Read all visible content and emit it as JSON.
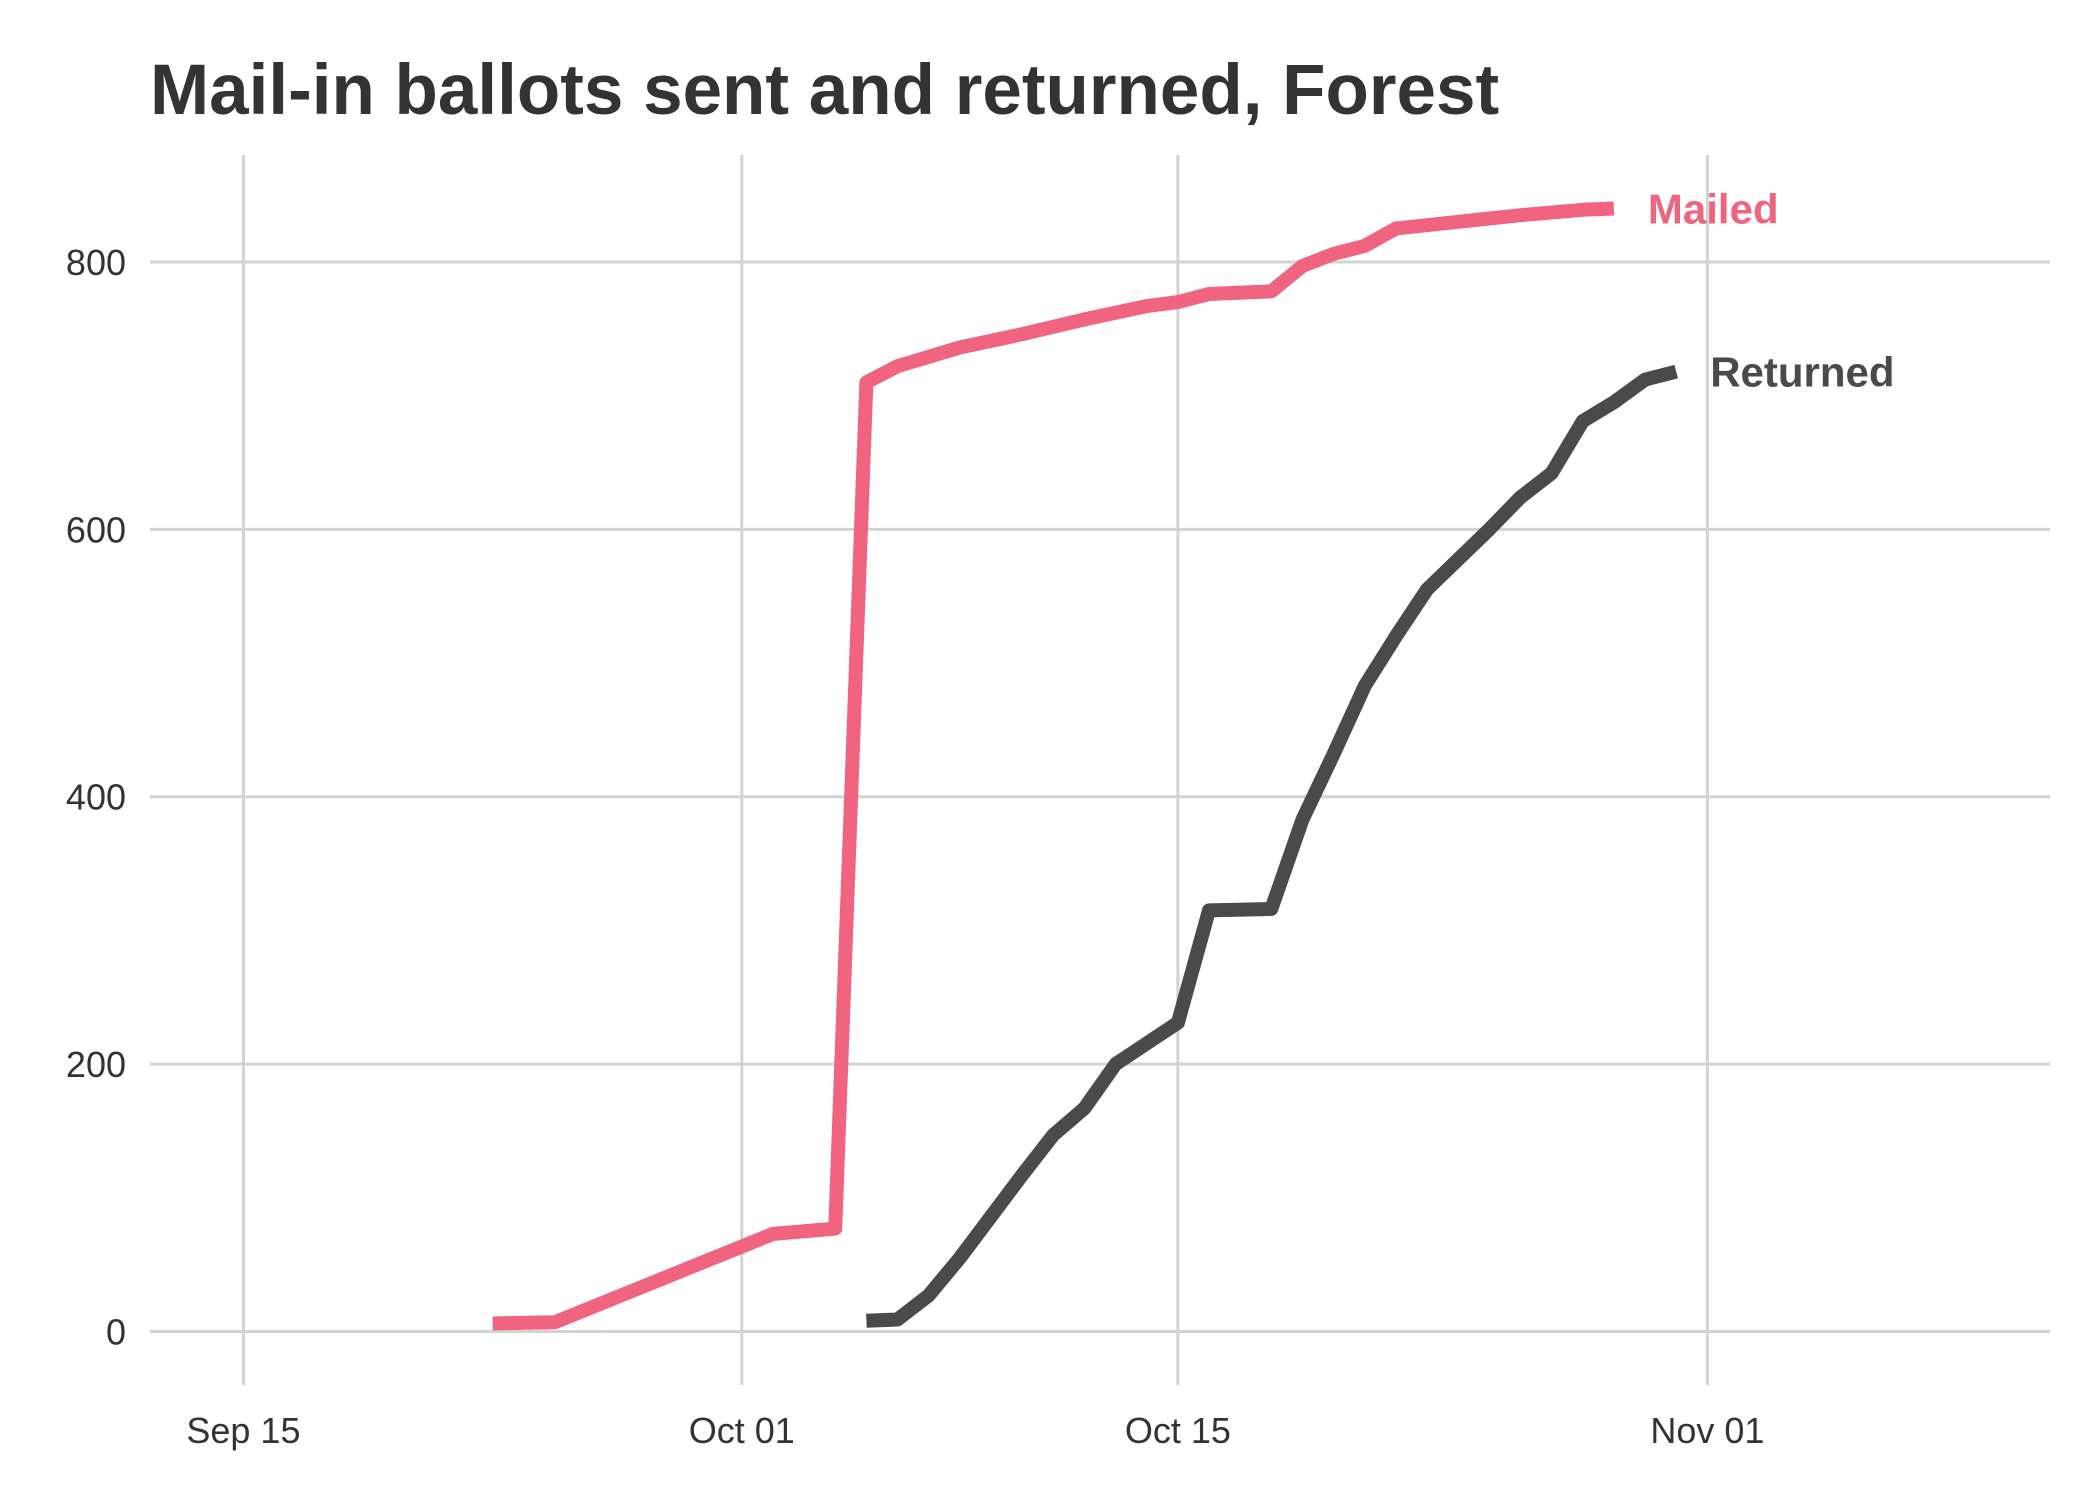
{
  "chart_data": {
    "type": "line",
    "title": "Mail-in ballots sent and returned, Forest",
    "xlabel": "",
    "ylabel": "",
    "x_ticks": [
      "Sep 15",
      "Oct 01",
      "Oct 15",
      "Nov 01"
    ],
    "y_ticks": [
      "0",
      "200",
      "400",
      "600",
      "800"
    ],
    "xlim": [
      "2020-09-12",
      "2020-11-12"
    ],
    "ylim": [
      -40,
      880
    ],
    "grid": true,
    "legend": "direct labels at line ends",
    "series": [
      {
        "name": "Mailed",
        "color": "#f06480",
        "points": [
          [
            "2020-09-23",
            6
          ],
          [
            "2020-09-25",
            7
          ],
          [
            "2020-10-02",
            73
          ],
          [
            "2020-10-04",
            77
          ],
          [
            "2020-10-05",
            710
          ],
          [
            "2020-10-06",
            722
          ],
          [
            "2020-10-08",
            736
          ],
          [
            "2020-10-10",
            746
          ],
          [
            "2020-10-12",
            757
          ],
          [
            "2020-10-14",
            767
          ],
          [
            "2020-10-15",
            770
          ],
          [
            "2020-10-16",
            776
          ],
          [
            "2020-10-18",
            778
          ],
          [
            "2020-10-19",
            797
          ],
          [
            "2020-10-20",
            806
          ],
          [
            "2020-10-21",
            812
          ],
          [
            "2020-10-22",
            825
          ],
          [
            "2020-10-24",
            830
          ],
          [
            "2020-10-26",
            835
          ],
          [
            "2020-10-28",
            839
          ],
          [
            "2020-10-29",
            840
          ]
        ]
      },
      {
        "name": "Returned",
        "color": "#4a4a4a",
        "points": [
          [
            "2020-10-05",
            8
          ],
          [
            "2020-10-06",
            9
          ],
          [
            "2020-10-07",
            27
          ],
          [
            "2020-10-08",
            55
          ],
          [
            "2020-10-09",
            86
          ],
          [
            "2020-10-10",
            117
          ],
          [
            "2020-10-11",
            147
          ],
          [
            "2020-10-12",
            167
          ],
          [
            "2020-10-13",
            200
          ],
          [
            "2020-10-15",
            231
          ],
          [
            "2020-10-16",
            315
          ],
          [
            "2020-10-18",
            316
          ],
          [
            "2020-10-19",
            383
          ],
          [
            "2020-10-20",
            432
          ],
          [
            "2020-10-21",
            483
          ],
          [
            "2020-10-22",
            520
          ],
          [
            "2020-10-23",
            555
          ],
          [
            "2020-10-25",
            600
          ],
          [
            "2020-10-26",
            624
          ],
          [
            "2020-10-27",
            642
          ],
          [
            "2020-10-28",
            681
          ],
          [
            "2020-10-29",
            695
          ],
          [
            "2020-10-30",
            712
          ],
          [
            "2020-10-31",
            718
          ]
        ]
      }
    ]
  }
}
